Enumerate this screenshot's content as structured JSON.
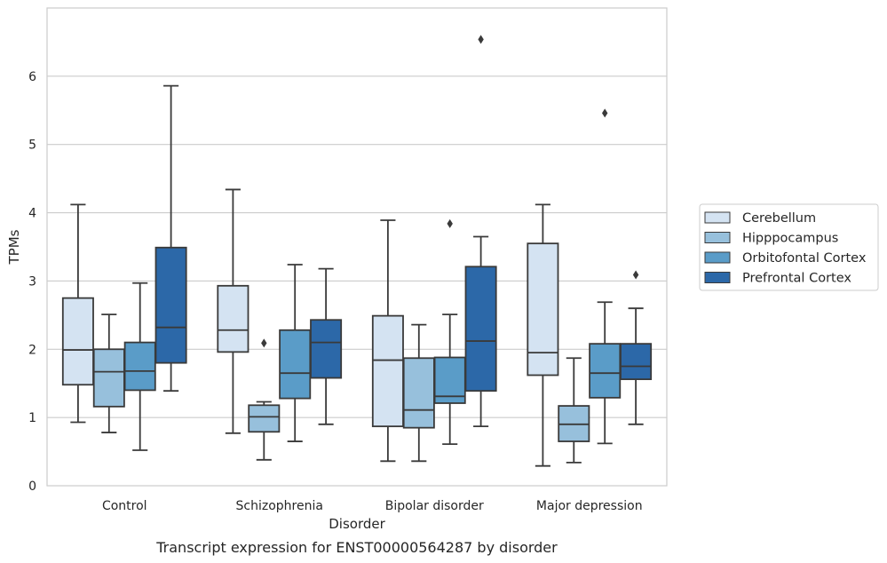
{
  "caption": "Transcript expression for ENST00000564287 by disorder",
  "chart_data": {
    "type": "box",
    "xlabel": "Disorder",
    "ylabel": "TPMs",
    "ylim": [
      0,
      7
    ],
    "yticks": [
      0,
      1,
      2,
      3,
      4,
      5,
      6
    ],
    "grid": "horizontal",
    "legend_position": "right",
    "categories": [
      "Control",
      "Schizophrenia",
      "Bipolar disorder",
      "Major depression"
    ],
    "series": [
      {
        "name": "Cerebellum",
        "color": "#d4e3f2",
        "boxes": [
          {
            "whislo": 0.93,
            "q1": 1.48,
            "med": 1.99,
            "q3": 2.75,
            "whishi": 4.12,
            "fliers": []
          },
          {
            "whislo": 0.77,
            "q1": 1.96,
            "med": 2.28,
            "q3": 2.93,
            "whishi": 4.34,
            "fliers": []
          },
          {
            "whislo": 0.36,
            "q1": 0.87,
            "med": 1.84,
            "q3": 2.49,
            "whishi": 3.89,
            "fliers": []
          },
          {
            "whislo": 0.29,
            "q1": 1.62,
            "med": 1.95,
            "q3": 3.55,
            "whishi": 4.12,
            "fliers": []
          }
        ]
      },
      {
        "name": "Hipppocampus",
        "color": "#97c0dc",
        "boxes": [
          {
            "whislo": 0.78,
            "q1": 1.16,
            "med": 1.67,
            "q3": 2.0,
            "whishi": 2.51,
            "fliers": []
          },
          {
            "whislo": 0.38,
            "q1": 0.79,
            "med": 1.01,
            "q3": 1.18,
            "whishi": 1.23,
            "fliers": [
              2.09
            ]
          },
          {
            "whislo": 0.36,
            "q1": 0.85,
            "med": 1.11,
            "q3": 1.87,
            "whishi": 2.36,
            "fliers": []
          },
          {
            "whislo": 0.34,
            "q1": 0.65,
            "med": 0.9,
            "q3": 1.17,
            "whishi": 1.87,
            "fliers": []
          }
        ]
      },
      {
        "name": "Orbitofontal Cortex",
        "color": "#5a9cc8",
        "boxes": [
          {
            "whislo": 0.52,
            "q1": 1.4,
            "med": 1.68,
            "q3": 2.1,
            "whishi": 2.97,
            "fliers": []
          },
          {
            "whislo": 0.65,
            "q1": 1.28,
            "med": 1.65,
            "q3": 2.28,
            "whishi": 3.24,
            "fliers": []
          },
          {
            "whislo": 0.61,
            "q1": 1.21,
            "med": 1.31,
            "q3": 1.88,
            "whishi": 2.51,
            "fliers": [
              3.84
            ]
          },
          {
            "whislo": 0.62,
            "q1": 1.29,
            "med": 1.65,
            "q3": 2.08,
            "whishi": 2.69,
            "fliers": [
              5.46
            ]
          }
        ]
      },
      {
        "name": "Prefrontal Cortex",
        "color": "#2c68a8",
        "boxes": [
          {
            "whislo": 1.39,
            "q1": 1.8,
            "med": 2.32,
            "q3": 3.49,
            "whishi": 5.86,
            "fliers": []
          },
          {
            "whislo": 0.9,
            "q1": 1.58,
            "med": 2.1,
            "q3": 2.43,
            "whishi": 3.18,
            "fliers": []
          },
          {
            "whislo": 0.87,
            "q1": 1.39,
            "med": 2.12,
            "q3": 3.21,
            "whishi": 3.65,
            "fliers": [
              6.54
            ]
          },
          {
            "whislo": 0.9,
            "q1": 1.56,
            "med": 1.75,
            "q3": 2.08,
            "whishi": 2.6,
            "fliers": [
              3.09
            ]
          }
        ]
      }
    ]
  }
}
